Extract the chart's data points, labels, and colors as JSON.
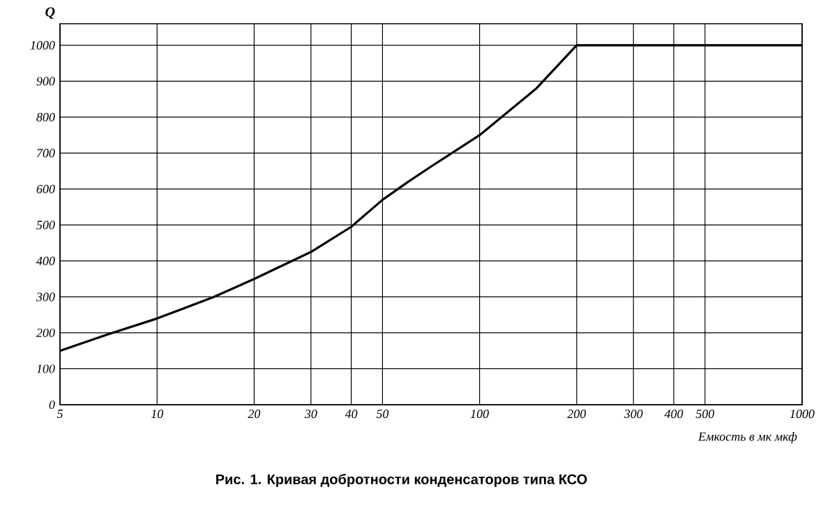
{
  "chart_data": {
    "type": "line",
    "title": "Рис. 1. Кривая добротности конденсаторов типа КСО",
    "xlabel": "Емкость в мк мкф",
    "ylabel": "Q",
    "log": "x",
    "grid": true,
    "color": "#000000",
    "marker": "none",
    "line_style": "solid",
    "x": [
      5,
      7,
      10,
      15,
      20,
      30,
      40,
      50,
      60,
      70,
      100,
      150,
      200,
      300,
      500,
      1000
    ],
    "values": [
      150,
      195,
      240,
      300,
      350,
      425,
      495,
      570,
      620,
      660,
      750,
      880,
      1000,
      1000,
      1000,
      1000
    ],
    "xlim": [
      5,
      1000
    ],
    "ylim": [
      0,
      1060
    ],
    "xticks": [
      5,
      10,
      20,
      30,
      40,
      50,
      100,
      200,
      300,
      400,
      500,
      1000
    ],
    "yticks": [
      0,
      100,
      200,
      300,
      400,
      500,
      600,
      700,
      800,
      900,
      1000
    ]
  }
}
